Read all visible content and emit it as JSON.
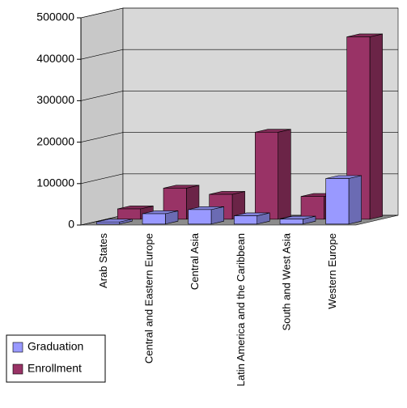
{
  "chart_data": {
    "type": "bar3d",
    "categories": [
      "Arab States",
      "Central and Eastern Europe",
      "Central Asia",
      "Latin America and the Caribbean",
      "South and West Asia",
      "Western Europe"
    ],
    "series": [
      {
        "name": "Graduation",
        "color": "#9999ff",
        "values": [
          5000,
          25000,
          35000,
          20000,
          12000,
          110000
        ]
      },
      {
        "name": "Enrollment",
        "color": "#993366",
        "values": [
          25000,
          75000,
          60000,
          210000,
          55000,
          440000
        ]
      }
    ],
    "ylim": [
      0,
      500000
    ],
    "yticks": [
      0,
      100000,
      200000,
      300000,
      400000,
      500000
    ],
    "grid": true,
    "legend": "bottom-left"
  }
}
